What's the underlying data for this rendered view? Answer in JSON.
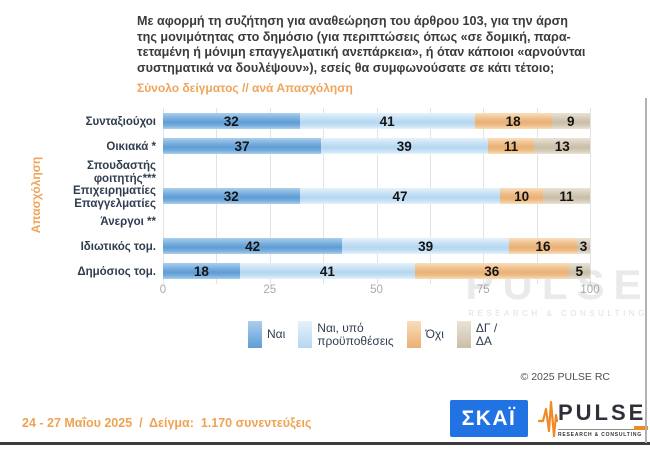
{
  "header": {
    "title": "Με αφορμή τη συζήτηση για αναθεώρηση του άρθρου 103, για την άρση\nτης μονιμότητας στο δημόσιο (για περιπτώσεις όπως «σε δομική, παρα-\nτεταμένη ή μόνιμη επαγγελματική ανεπάρκεια», ή όταν κάποιοι «αρνούνται\nσυστηματικά να δουλέψουν»), εσείς θα συμφωνούσατε σε κάτι τέτοιο;",
    "subtitle": "Σύνολο δείγματος // ανά Απασχόληση"
  },
  "chart_data": {
    "type": "bar",
    "orientation": "horizontal_stacked",
    "ylabel": "Απασχόληση",
    "categories": [
      "Συνταξιούχοι",
      "Οικιακά *",
      "Σπουδαστής\nφοιτητής***",
      "Επιχειρηματίες\nΕπαγγελματίες",
      "Άνεργοι **",
      "Ιδιωτικός τομ.",
      "Δημόσιος τομ."
    ],
    "series": [
      {
        "name": "Ναι",
        "color": "#74acdd",
        "color_light": "#abcfec",
        "color_dark": "#5f9dd4",
        "values": [
          32,
          37,
          null,
          32,
          null,
          42,
          18
        ]
      },
      {
        "name": "Ναι, υπό\nπροϋποθέσεις",
        "color": "#c3dff4",
        "color_light": "#e6f2fb",
        "color_dark": "#b4d7f0",
        "values": [
          41,
          39,
          null,
          47,
          null,
          39,
          41
        ]
      },
      {
        "name": "Όχι",
        "color": "#efbd87",
        "color_light": "#f8dfbc",
        "color_dark": "#e9b077",
        "values": [
          18,
          11,
          null,
          10,
          null,
          16,
          36
        ]
      },
      {
        "name": "ΔΓ /\nΔΑ",
        "color": "#d3c9b6",
        "color_light": "#eae4d7",
        "color_dark": "#c9bea8",
        "values": [
          9,
          13,
          null,
          11,
          null,
          3,
          5
        ]
      }
    ],
    "xlim": [
      0,
      100
    ],
    "xticks": [
      0,
      25,
      50,
      75,
      100
    ],
    "grid_step": 12.5,
    "legend_position": "bottom"
  },
  "watermark": {
    "title": "PULSE",
    "subtitle": "RESEARCH & CONSULTING"
  },
  "footer": {
    "copyright": "© 2025 PULSE RC",
    "survey_info": "24 - 27 Μαΐου 2025  /  Δείγμα:  1.170 συνεντεύξεις",
    "skai_logo": "ΣΚΑΪ",
    "pulse_logo": "PULSE",
    "pulse_logo_sub": "RESEARCH & CONSULTING"
  },
  "colors": {
    "accent_orange": "#efa45a",
    "title_text": "#3b3b3b",
    "label_text": "#2f3d4f",
    "tick_text": "#a9a9a9",
    "skai_blue": "#2173e3",
    "pulse_orange": "#f08b28",
    "pulse_dark": "#30303a"
  }
}
